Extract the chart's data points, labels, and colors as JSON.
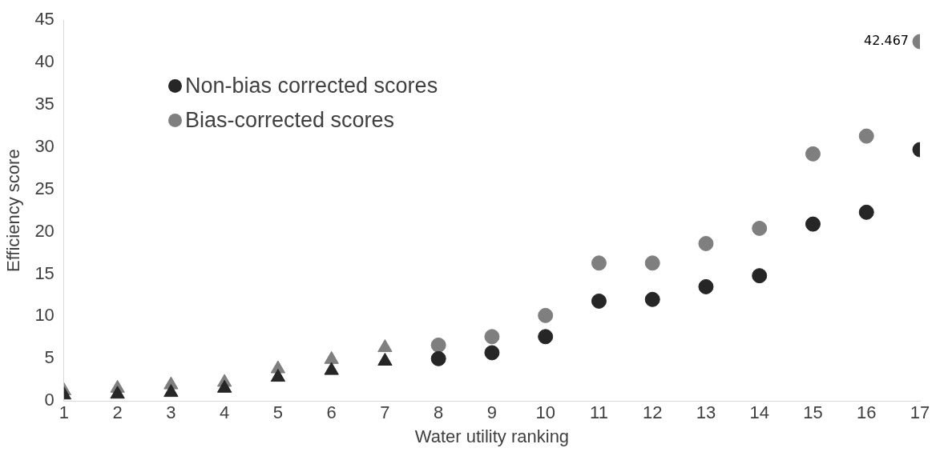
{
  "chart_data": {
    "type": "scatter",
    "xlabel": "Water utility ranking",
    "ylabel": "Efficiency score",
    "x": [
      1,
      2,
      3,
      4,
      5,
      6,
      7,
      8,
      9,
      10,
      11,
      12,
      13,
      14,
      15,
      16,
      17
    ],
    "xlim": [
      1,
      17
    ],
    "xticks": [
      1,
      2,
      3,
      4,
      5,
      6,
      7,
      8,
      9,
      10,
      11,
      12,
      13,
      14,
      15,
      16,
      17
    ],
    "ylim": [
      0,
      45
    ],
    "yticks": [
      0,
      5,
      10,
      15,
      20,
      25,
      30,
      35,
      40,
      45
    ],
    "grid": false,
    "legend": "top left",
    "series": [
      {
        "name": "Non-bias corrected scores",
        "color": "#262626",
        "marker": "circle",
        "values": [
          null,
          null,
          null,
          null,
          null,
          null,
          null,
          5.0,
          5.7,
          7.6,
          11.8,
          12.0,
          13.5,
          14.8,
          20.9,
          22.3,
          29.7
        ]
      },
      {
        "name": "Bias-corrected scores",
        "color": "#7f7f7f",
        "marker": "circle",
        "values": [
          null,
          null,
          null,
          null,
          null,
          null,
          null,
          6.6,
          7.6,
          10.1,
          16.3,
          16.3,
          18.6,
          20.4,
          29.2,
          31.3,
          42.467
        ],
        "value_labels": [
          null,
          null,
          null,
          null,
          null,
          null,
          null,
          null,
          null,
          null,
          null,
          null,
          null,
          null,
          null,
          null,
          "42.467"
        ]
      },
      {
        "color": "#262626",
        "marker": "triangle",
        "values": [
          0.7,
          0.8,
          1.0,
          1.5,
          2.8,
          3.6,
          4.7,
          null,
          null,
          null,
          null,
          null,
          null,
          null,
          null,
          null,
          null
        ]
      },
      {
        "color": "#7f7f7f",
        "marker": "triangle",
        "values": [
          1.2,
          1.5,
          1.9,
          2.2,
          3.8,
          4.9,
          6.3,
          null,
          null,
          null,
          null,
          null,
          null,
          null,
          null,
          null,
          null
        ]
      }
    ]
  }
}
